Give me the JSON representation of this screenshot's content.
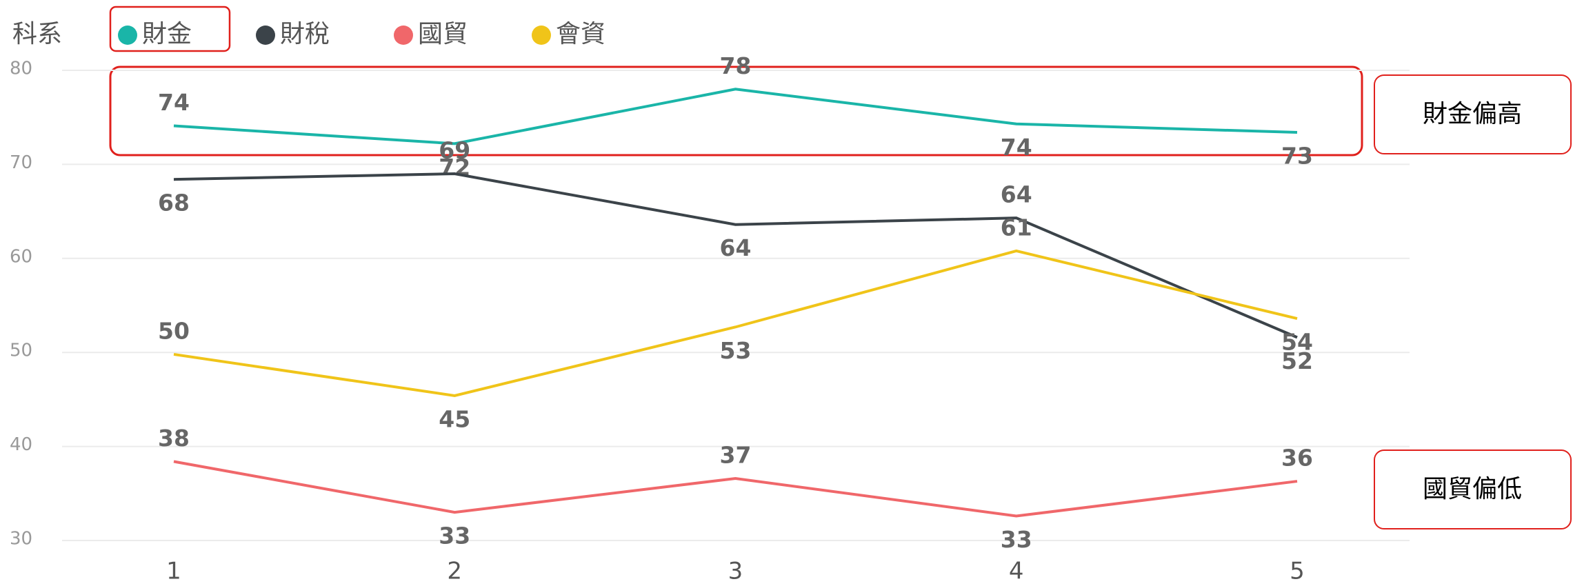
{
  "chart_data": {
    "type": "line",
    "legend_title": "科系",
    "categories": [
      "1",
      "2",
      "3",
      "4",
      "5"
    ],
    "series": [
      {
        "name": "財金",
        "color": "#1ab5a8",
        "values": [
          74.1,
          72.2,
          78.0,
          74.3,
          73.4
        ],
        "value_labels": [
          "74",
          "72",
          "78",
          "74",
          "73"
        ]
      },
      {
        "name": "財稅",
        "color": "#3b4349",
        "values": [
          68.4,
          69.0,
          63.6,
          64.3,
          51.6
        ],
        "value_labels": [
          "68",
          "69",
          "64",
          "64",
          "52"
        ]
      },
      {
        "name": "國貿",
        "color": "#f0676a",
        "values": [
          38.4,
          33.0,
          36.6,
          32.6,
          36.3
        ],
        "value_labels": [
          "38",
          "33",
          "37",
          "33",
          "36"
        ]
      },
      {
        "name": "會資",
        "color": "#f0c419",
        "values": [
          49.8,
          45.4,
          52.7,
          60.8,
          53.6
        ],
        "value_labels": [
          "50",
          "45",
          "53",
          "61",
          "54"
        ]
      }
    ],
    "ylim": [
      30,
      80
    ],
    "yticks": [
      30,
      40,
      50,
      60,
      70,
      80
    ],
    "grid": true,
    "annotations": [
      "財金偏高",
      "國貿偏低"
    ]
  }
}
